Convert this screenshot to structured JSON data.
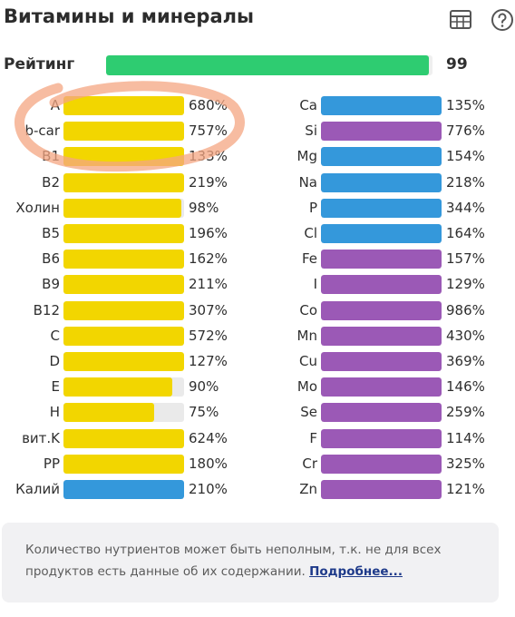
{
  "header": {
    "title": "Витамины и минералы",
    "table_icon": "table-icon",
    "help_icon": "help-icon"
  },
  "rating": {
    "label": "Рейтинг",
    "value": "99",
    "fraction": 0.99,
    "color": "#2ecc71"
  },
  "colors": {
    "yellow": "#f2d600",
    "blue": "#3498db",
    "purple": "#9b59b6",
    "annotation": "#f4a582"
  },
  "left_column": [
    {
      "label": "A",
      "value": "680%",
      "fill": 1.0,
      "color": "yellow"
    },
    {
      "label": "b-car",
      "value": "757%",
      "fill": 1.0,
      "color": "yellow"
    },
    {
      "label": "B1",
      "value": "133%",
      "fill": 1.0,
      "color": "yellow"
    },
    {
      "label": "B2",
      "value": "219%",
      "fill": 1.0,
      "color": "yellow"
    },
    {
      "label": "Холин",
      "value": "98%",
      "fill": 0.98,
      "color": "yellow"
    },
    {
      "label": "B5",
      "value": "196%",
      "fill": 1.0,
      "color": "yellow"
    },
    {
      "label": "B6",
      "value": "162%",
      "fill": 1.0,
      "color": "yellow"
    },
    {
      "label": "B9",
      "value": "211%",
      "fill": 1.0,
      "color": "yellow"
    },
    {
      "label": "B12",
      "value": "307%",
      "fill": 1.0,
      "color": "yellow"
    },
    {
      "label": "C",
      "value": "572%",
      "fill": 1.0,
      "color": "yellow"
    },
    {
      "label": "D",
      "value": "127%",
      "fill": 1.0,
      "color": "yellow"
    },
    {
      "label": "E",
      "value": "90%",
      "fill": 0.9,
      "color": "yellow"
    },
    {
      "label": "H",
      "value": "75%",
      "fill": 0.75,
      "color": "yellow"
    },
    {
      "label": "вит.K",
      "value": "624%",
      "fill": 1.0,
      "color": "yellow"
    },
    {
      "label": "PP",
      "value": "180%",
      "fill": 1.0,
      "color": "yellow"
    },
    {
      "label": "Калий",
      "value": "210%",
      "fill": 1.0,
      "color": "blue"
    }
  ],
  "right_column": [
    {
      "label": "Ca",
      "value": "135%",
      "fill": 1.0,
      "color": "blue"
    },
    {
      "label": "Si",
      "value": "776%",
      "fill": 1.0,
      "color": "purple"
    },
    {
      "label": "Mg",
      "value": "154%",
      "fill": 1.0,
      "color": "blue"
    },
    {
      "label": "Na",
      "value": "218%",
      "fill": 1.0,
      "color": "blue"
    },
    {
      "label": "P",
      "value": "344%",
      "fill": 1.0,
      "color": "blue"
    },
    {
      "label": "Cl",
      "value": "164%",
      "fill": 1.0,
      "color": "blue"
    },
    {
      "label": "Fe",
      "value": "157%",
      "fill": 1.0,
      "color": "purple"
    },
    {
      "label": "I",
      "value": "129%",
      "fill": 1.0,
      "color": "purple"
    },
    {
      "label": "Co",
      "value": "986%",
      "fill": 1.0,
      "color": "purple"
    },
    {
      "label": "Mn",
      "value": "430%",
      "fill": 1.0,
      "color": "purple"
    },
    {
      "label": "Cu",
      "value": "369%",
      "fill": 1.0,
      "color": "purple"
    },
    {
      "label": "Mo",
      "value": "146%",
      "fill": 1.0,
      "color": "purple"
    },
    {
      "label": "Se",
      "value": "259%",
      "fill": 1.0,
      "color": "purple"
    },
    {
      "label": "F",
      "value": "114%",
      "fill": 1.0,
      "color": "purple"
    },
    {
      "label": "Cr",
      "value": "325%",
      "fill": 1.0,
      "color": "purple"
    },
    {
      "label": "Zn",
      "value": "121%",
      "fill": 1.0,
      "color": "purple"
    }
  ],
  "note": {
    "text": "Количество нутриентов может быть неполным, т.к. не для всех продуктов есть данные об их содержании.",
    "link_label": "Подробнее..."
  }
}
